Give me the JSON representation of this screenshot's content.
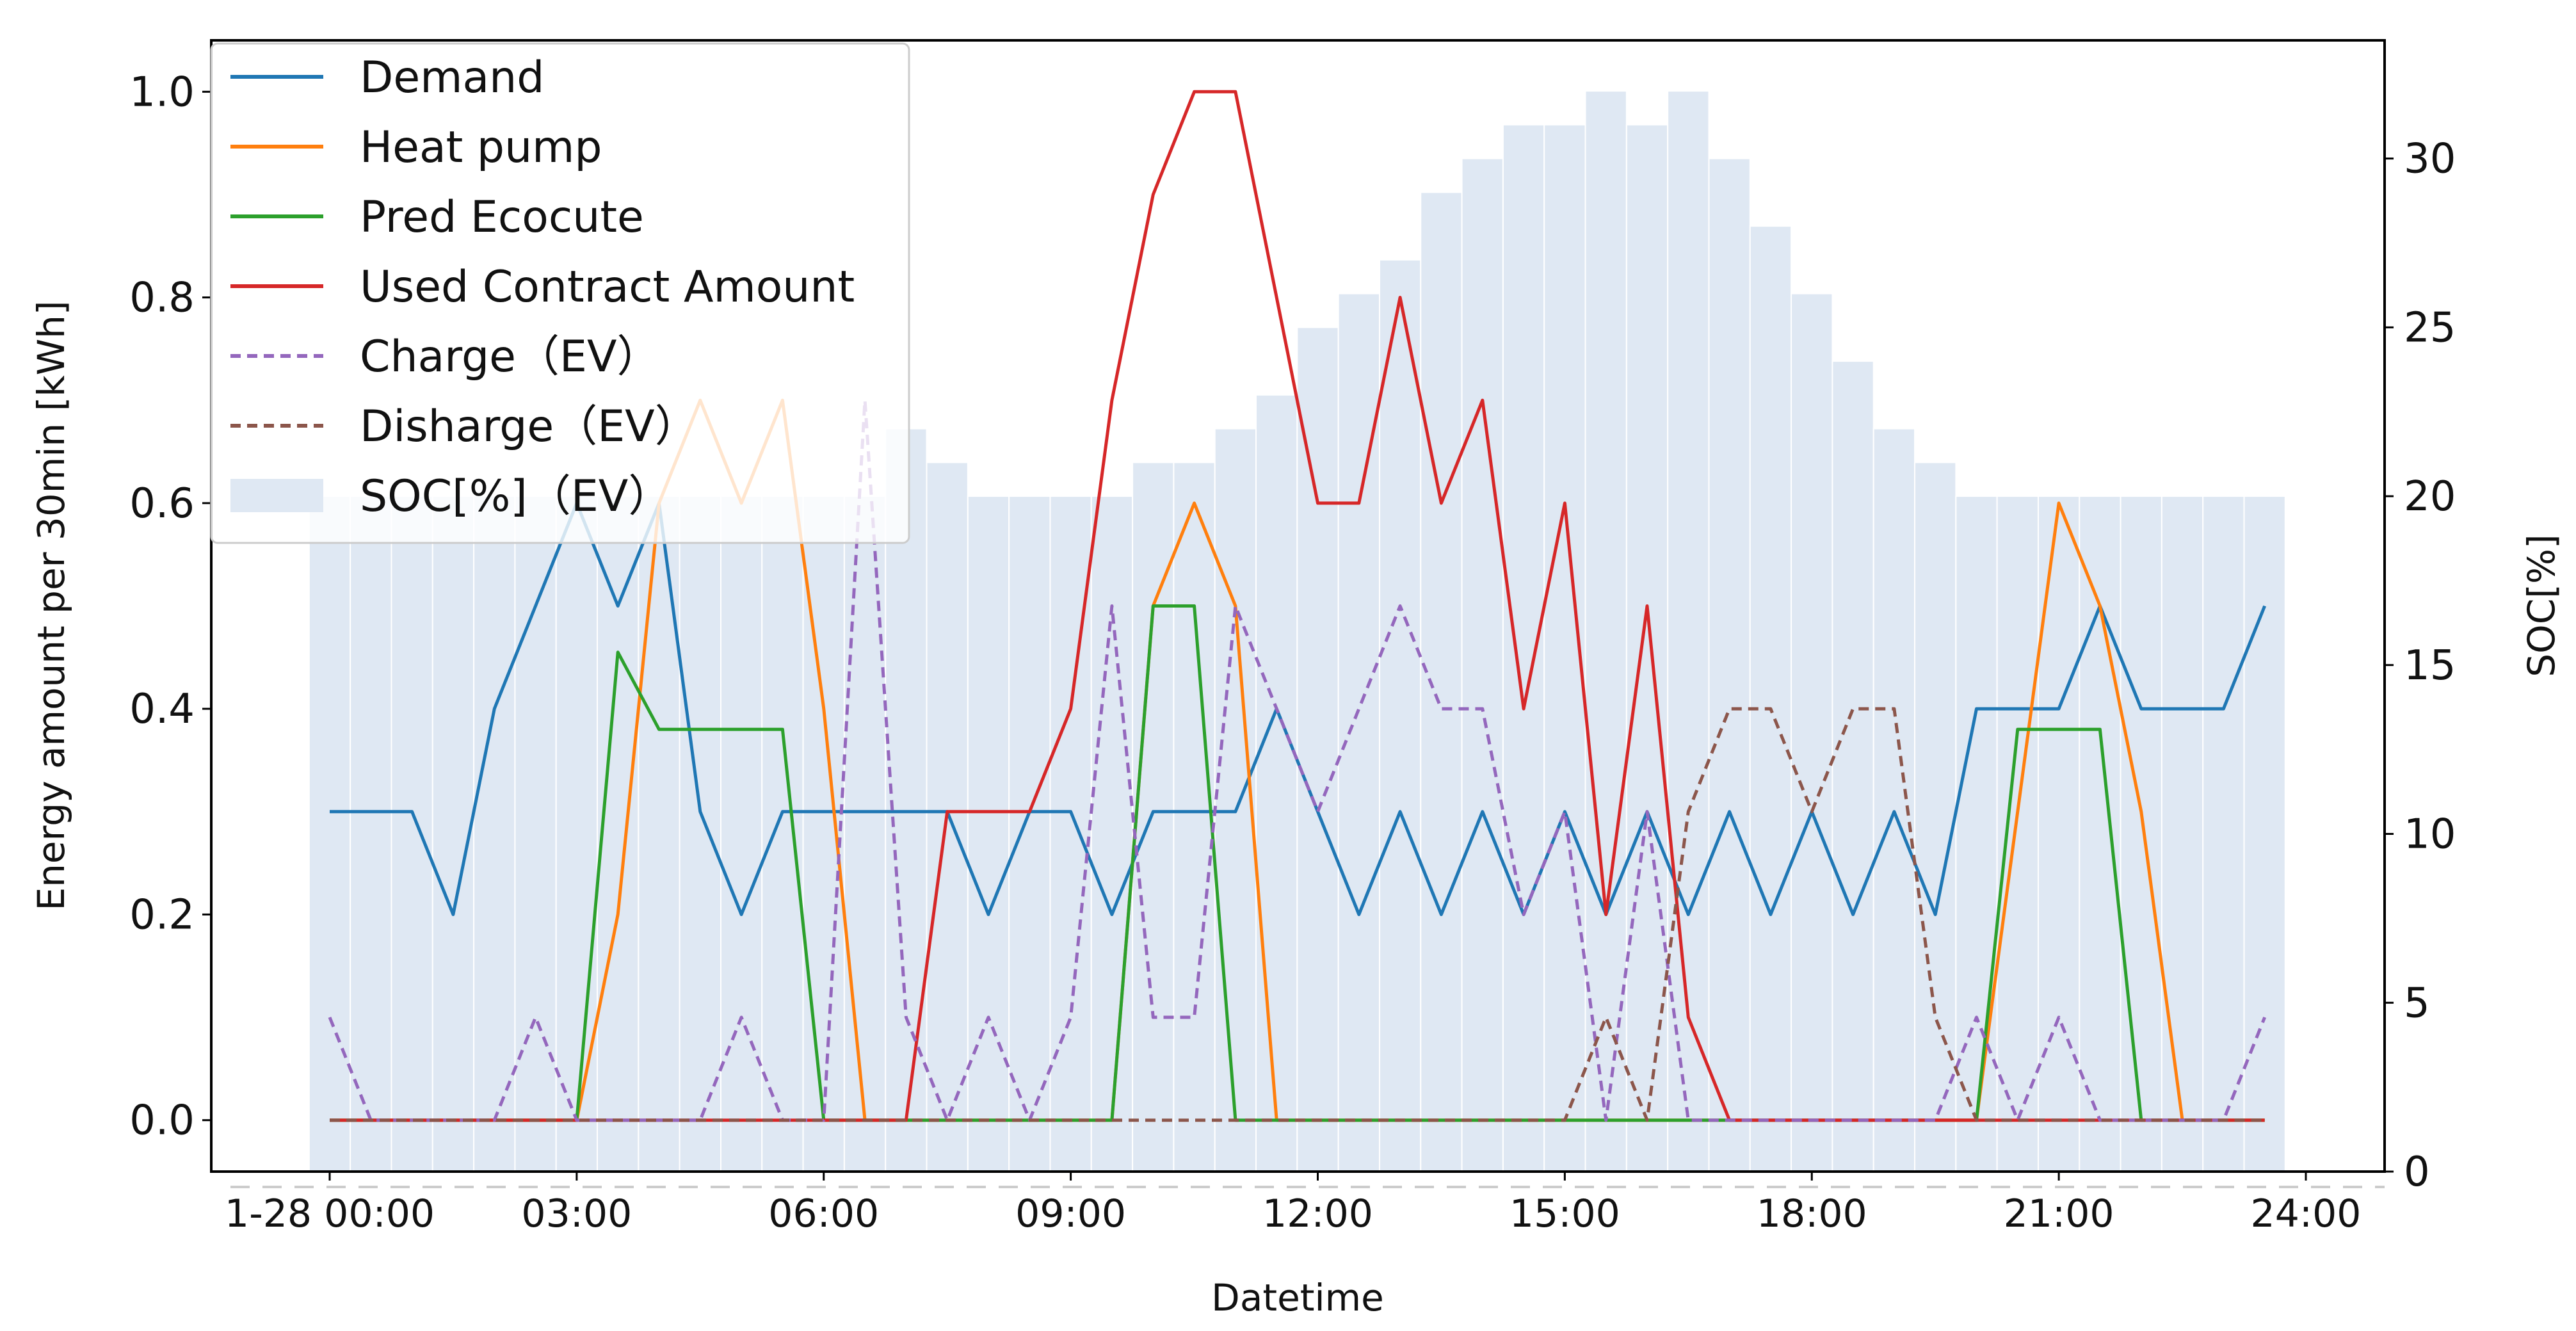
{
  "chart_data": {
    "type": "line",
    "title": "",
    "xlabel": "Datetime",
    "ylabel": "Energy amount per 30min [kWh]",
    "y2label": "SOC[%]",
    "ylim": [
      -0.05,
      1.05
    ],
    "y2lim": [
      0,
      33.5
    ],
    "yticks": [
      "0.0",
      "0.2",
      "0.4",
      "0.6",
      "0.8",
      "1.0"
    ],
    "y2ticks": [
      "0",
      "5",
      "10",
      "15",
      "20",
      "25",
      "30"
    ],
    "xtick_labels": [
      "1-28 00:00",
      "03:00",
      "06:00",
      "09:00",
      "12:00",
      "15:00",
      "18:00",
      "21:00",
      "24:00"
    ],
    "x_hours": [
      0,
      0.5,
      1,
      1.5,
      2,
      2.5,
      3,
      3.5,
      4,
      4.5,
      5,
      5.5,
      6,
      6.5,
      7,
      7.5,
      8,
      8.5,
      9,
      9.5,
      10,
      10.5,
      11,
      11.5,
      12,
      12.5,
      13,
      13.5,
      14,
      14.5,
      15,
      15.5,
      16,
      16.5,
      17,
      17.5,
      18,
      18.5,
      19,
      19.5,
      20,
      20.5,
      21,
      21.5,
      22,
      22.5,
      23,
      23.5
    ],
    "series": [
      {
        "name": "Demand",
        "color": "#1f77b4",
        "style": "solid",
        "values": [
          0.3,
          0.3,
          0.3,
          0.2,
          0.4,
          0.5,
          0.6,
          0.5,
          0.6,
          0.3,
          0.2,
          0.3,
          0.3,
          0.3,
          0.3,
          0.3,
          0.2,
          0.3,
          0.3,
          0.2,
          0.3,
          0.3,
          0.3,
          0.4,
          0.3,
          0.2,
          0.3,
          0.2,
          0.3,
          0.2,
          0.3,
          0.2,
          0.3,
          0.2,
          0.3,
          0.2,
          0.3,
          0.2,
          0.3,
          0.2,
          0.4,
          0.4,
          0.4,
          0.5,
          0.4,
          0.4,
          0.4,
          0.5
        ]
      },
      {
        "name": "Heat pump",
        "color": "#ff7f0e",
        "style": "solid",
        "values": [
          0,
          0,
          0,
          0,
          0,
          0,
          0,
          0.2,
          0.6,
          0.7,
          0.6,
          0.7,
          0.4,
          0,
          0,
          0,
          0,
          0,
          0,
          0,
          0.5,
          0.6,
          0.5,
          0,
          0,
          0,
          0,
          0,
          0,
          0,
          0,
          0,
          0,
          0,
          0,
          0,
          0,
          0,
          0,
          0,
          0,
          0.3,
          0.6,
          0.5,
          0.3,
          0,
          0,
          0
        ]
      },
      {
        "name": "Pred Ecocute",
        "color": "#2ca02c",
        "style": "solid",
        "values": [
          0,
          0,
          0,
          0,
          0,
          0,
          0,
          0.455,
          0.38,
          0.38,
          0.38,
          0.38,
          0,
          0,
          0,
          0,
          0,
          0,
          0,
          0,
          0.5,
          0.5,
          0,
          0,
          0,
          0,
          0,
          0,
          0,
          0,
          0,
          0,
          0,
          0,
          0,
          0,
          0,
          0,
          0,
          0,
          0,
          0.38,
          0.38,
          0.38,
          0,
          0,
          0,
          0
        ]
      },
      {
        "name": "Used Contract Amount",
        "color": "#d62728",
        "style": "solid",
        "values": [
          0,
          0,
          0,
          0,
          0,
          0,
          0,
          0,
          0,
          0,
          0,
          0,
          0,
          0,
          0,
          0.3,
          0.3,
          0.3,
          0.4,
          0.7,
          0.9,
          1.0,
          1.0,
          0.8,
          0.6,
          0.6,
          0.8,
          0.6,
          0.7,
          0.4,
          0.6,
          0.2,
          0.5,
          0.1,
          0,
          0,
          0,
          0,
          0,
          0,
          0,
          0,
          0,
          0,
          0,
          0,
          0,
          0
        ]
      },
      {
        "name": "Charge（EV）",
        "color": "#9467bd",
        "style": "dashed",
        "values": [
          0.1,
          0,
          0,
          0,
          0,
          0.1,
          0,
          0,
          0,
          0,
          0.1,
          0,
          0,
          0.7,
          0.1,
          0,
          0.1,
          0,
          0.1,
          0.5,
          0.1,
          0.1,
          0.5,
          0.4,
          0.3,
          0.4,
          0.5,
          0.4,
          0.4,
          0.2,
          0.3,
          0,
          0.3,
          0,
          0,
          0,
          0,
          0,
          0,
          0,
          0.1,
          0,
          0.1,
          0,
          0,
          0,
          0,
          0.1
        ]
      },
      {
        "name": "Disharge（EV）",
        "color": "#8c564b",
        "style": "dashed",
        "values": [
          0,
          0,
          0,
          0,
          0,
          0,
          0,
          0,
          0,
          0,
          0,
          0,
          0,
          0,
          0,
          0,
          0,
          0,
          0,
          0,
          0,
          0,
          0,
          0,
          0,
          0,
          0,
          0,
          0,
          0,
          0,
          0.1,
          0,
          0.3,
          0.4,
          0.4,
          0.3,
          0.4,
          0.4,
          0.1,
          0,
          0,
          0,
          0,
          0,
          0,
          0,
          0
        ]
      },
      {
        "name": "SOC[%]（EV）",
        "color": "#dfe8f3",
        "style": "bar",
        "values": [
          20,
          20,
          20,
          20,
          20,
          20,
          20,
          20,
          20,
          20,
          20,
          20,
          20,
          20,
          22,
          21,
          20,
          20,
          20,
          20,
          21,
          21,
          22,
          23,
          25,
          26,
          27,
          29,
          30,
          31,
          31,
          32,
          31,
          32,
          30,
          28,
          26,
          24,
          22,
          21,
          20,
          20,
          20,
          20,
          20,
          20,
          20,
          20
        ]
      }
    ]
  }
}
